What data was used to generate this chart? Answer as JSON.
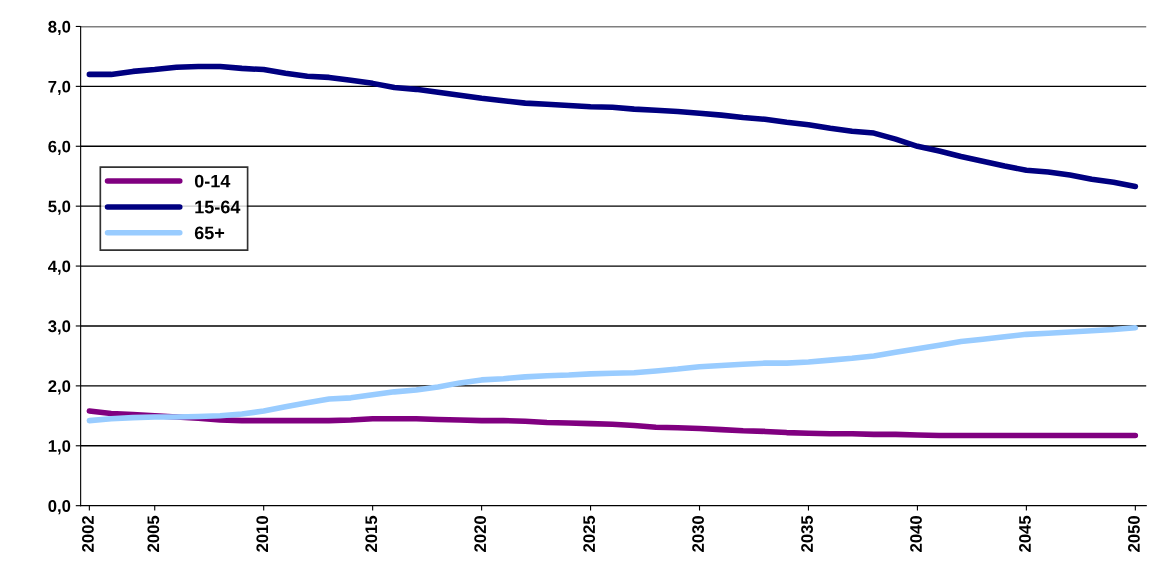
{
  "chart_data": {
    "type": "line",
    "x": [
      2002,
      2003,
      2004,
      2005,
      2006,
      2007,
      2008,
      2009,
      2010,
      2011,
      2012,
      2013,
      2014,
      2015,
      2016,
      2017,
      2018,
      2019,
      2020,
      2021,
      2022,
      2023,
      2024,
      2025,
      2026,
      2027,
      2028,
      2029,
      2030,
      2031,
      2032,
      2033,
      2034,
      2035,
      2036,
      2037,
      2038,
      2039,
      2040,
      2041,
      2042,
      2043,
      2044,
      2045,
      2046,
      2047,
      2048,
      2049,
      2050
    ],
    "series": [
      {
        "name": "0-14",
        "color": "#800080",
        "values": [
          1.58,
          1.54,
          1.52,
          1.5,
          1.48,
          1.46,
          1.43,
          1.42,
          1.42,
          1.42,
          1.42,
          1.42,
          1.43,
          1.45,
          1.45,
          1.45,
          1.44,
          1.43,
          1.42,
          1.42,
          1.41,
          1.39,
          1.38,
          1.37,
          1.36,
          1.34,
          1.31,
          1.3,
          1.29,
          1.27,
          1.25,
          1.24,
          1.22,
          1.21,
          1.2,
          1.2,
          1.19,
          1.19,
          1.18,
          1.17,
          1.17,
          1.17,
          1.17,
          1.17,
          1.17,
          1.17,
          1.17,
          1.17,
          1.17
        ]
      },
      {
        "name": "15-64",
        "color": "#000080",
        "values": [
          7.2,
          7.2,
          7.25,
          7.28,
          7.32,
          7.33,
          7.33,
          7.3,
          7.28,
          7.22,
          7.17,
          7.15,
          7.1,
          7.05,
          6.98,
          6.95,
          6.9,
          6.85,
          6.8,
          6.76,
          6.72,
          6.7,
          6.68,
          6.66,
          6.65,
          6.62,
          6.6,
          6.58,
          6.55,
          6.52,
          6.48,
          6.45,
          6.4,
          6.36,
          6.3,
          6.25,
          6.22,
          6.12,
          6.0,
          5.92,
          5.83,
          5.75,
          5.67,
          5.6,
          5.57,
          5.52,
          5.45,
          5.4,
          5.33
        ]
      },
      {
        "name": "65+",
        "color": "#99ccff",
        "values": [
          1.42,
          1.45,
          1.47,
          1.48,
          1.48,
          1.49,
          1.5,
          1.53,
          1.58,
          1.65,
          1.72,
          1.78,
          1.8,
          1.85,
          1.9,
          1.93,
          1.98,
          2.05,
          2.1,
          2.12,
          2.15,
          2.17,
          2.18,
          2.2,
          2.21,
          2.22,
          2.25,
          2.28,
          2.32,
          2.34,
          2.36,
          2.38,
          2.38,
          2.4,
          2.43,
          2.46,
          2.5,
          2.56,
          2.62,
          2.68,
          2.74,
          2.78,
          2.82,
          2.86,
          2.88,
          2.9,
          2.92,
          2.94,
          2.97
        ]
      }
    ],
    "xlim": [
      2001.6,
      2050.5
    ],
    "xticks": [
      2002,
      2005,
      2010,
      2015,
      2020,
      2025,
      2030,
      2035,
      2040,
      2045,
      2050
    ],
    "ylim": [
      0,
      8
    ],
    "yticks": [
      {
        "value": 0,
        "label": "0,0"
      },
      {
        "value": 1,
        "label": "1,0"
      },
      {
        "value": 2,
        "label": "2,0"
      },
      {
        "value": 3,
        "label": "3,0"
      },
      {
        "value": 4,
        "label": "4,0"
      },
      {
        "value": 5,
        "label": "5,0"
      },
      {
        "value": 6,
        "label": "6,0"
      },
      {
        "value": 7,
        "label": "7,0"
      },
      {
        "value": 8,
        "label": "8,0"
      }
    ],
    "grid": "y",
    "legend": "center left",
    "line_style": "solid"
  }
}
